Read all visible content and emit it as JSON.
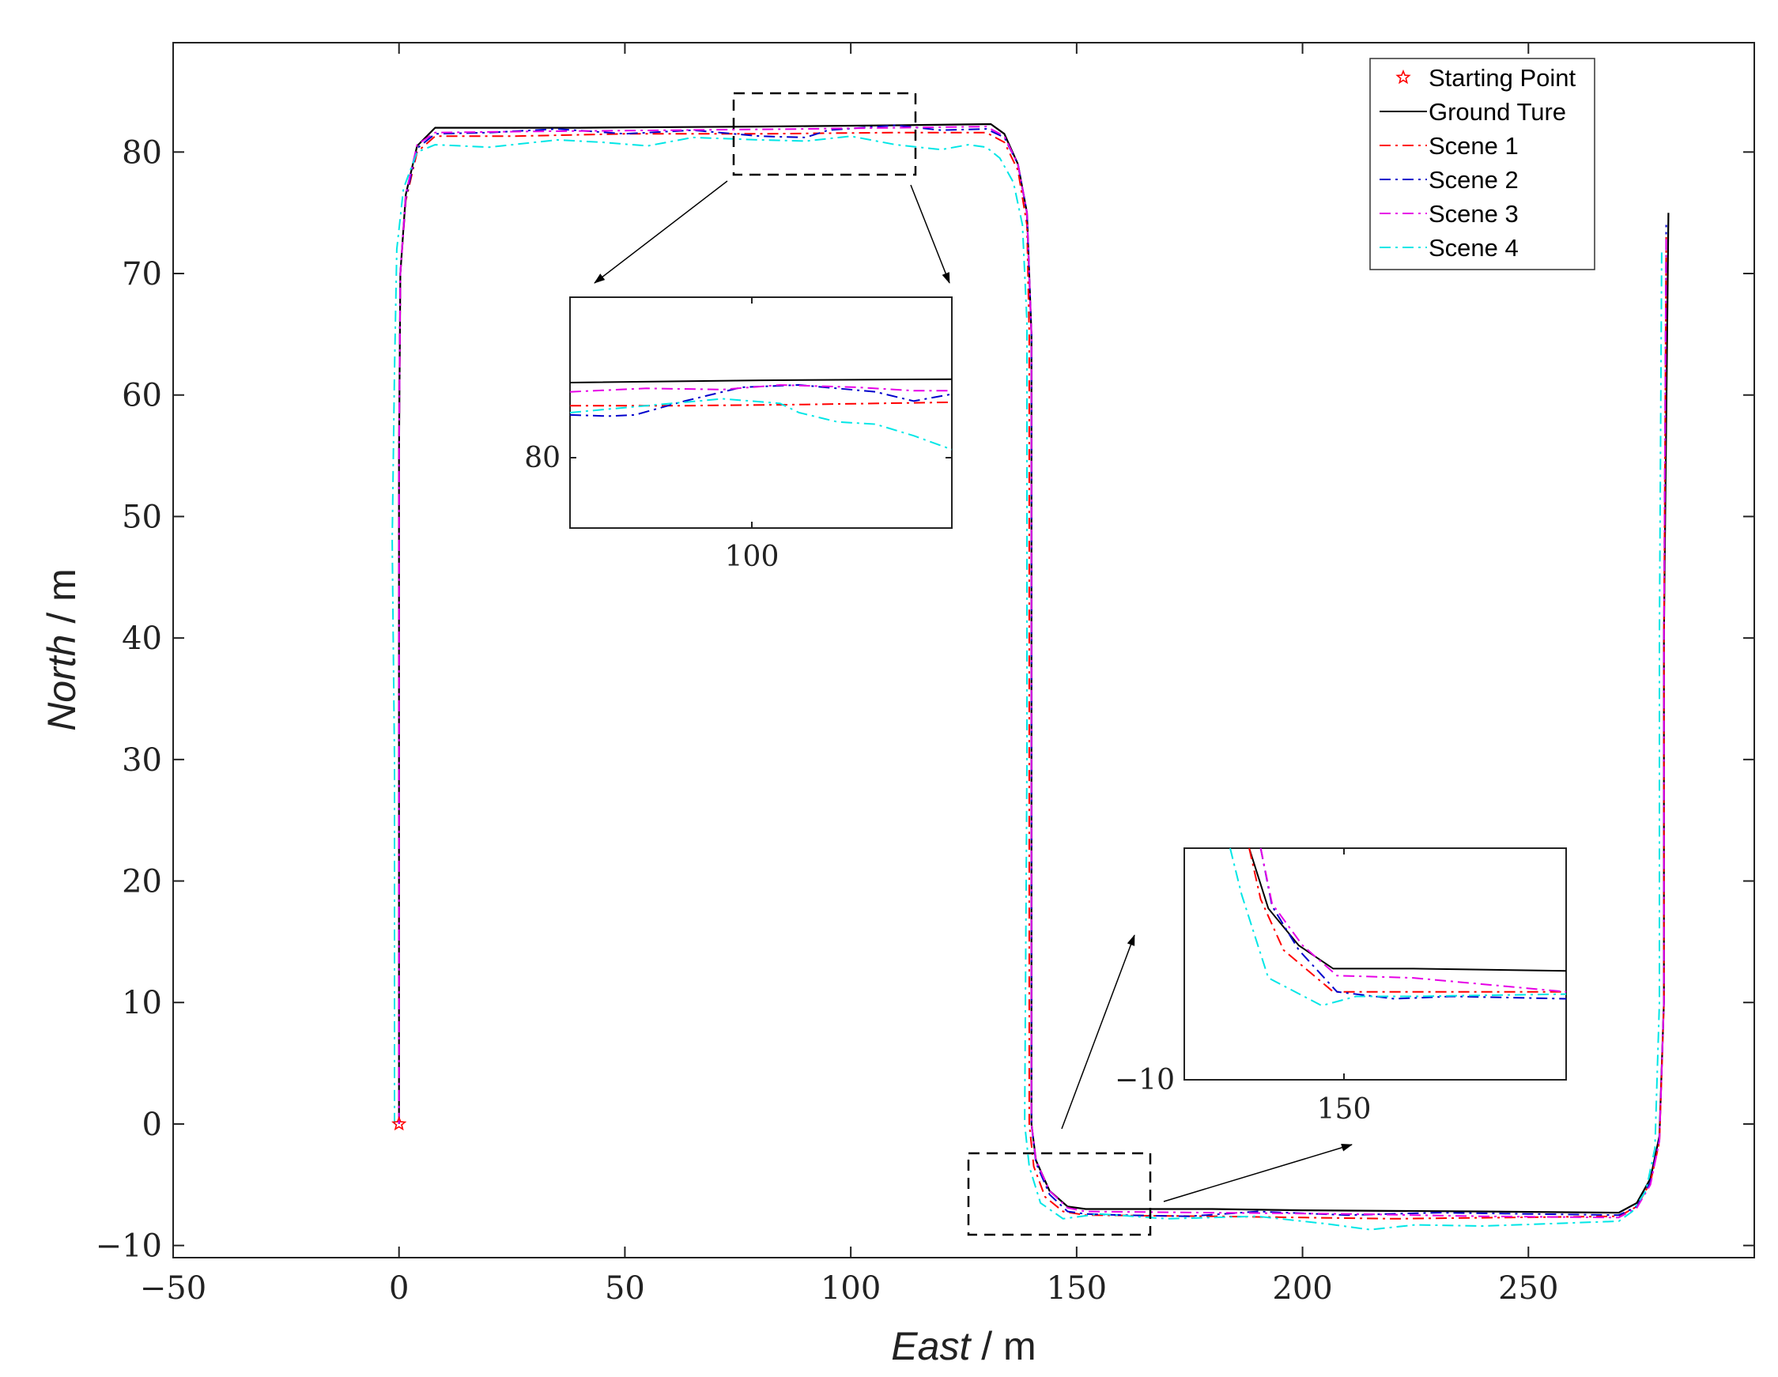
{
  "chart_data": {
    "type": "line",
    "title": "",
    "xlabel": {
      "italic": "East",
      "rest": " / m"
    },
    "ylabel": {
      "italic": "North",
      "rest": " / m"
    },
    "xlim": [
      -50,
      300
    ],
    "ylim": [
      -11,
      89
    ],
    "xticks": [
      -50,
      0,
      50,
      100,
      150,
      200,
      250
    ],
    "yticks": [
      -10,
      0,
      10,
      20,
      30,
      40,
      50,
      60,
      70,
      80
    ],
    "tick_labels": {
      "x": [
        "−50",
        "0",
        "50",
        "100",
        "150",
        "200",
        "250"
      ],
      "y": [
        "−10",
        "0",
        "10",
        "20",
        "30",
        "40",
        "50",
        "60",
        "70",
        "80"
      ]
    },
    "grid": false,
    "legend_position": "top-right",
    "start_point": {
      "name": "Starting Point",
      "x": 0,
      "y": 0,
      "marker": "star",
      "color": "#ff0000"
    },
    "series": [
      {
        "name": "Ground Ture",
        "color": "#000000",
        "dash": "solid",
        "points": [
          [
            0,
            0
          ],
          [
            0,
            30
          ],
          [
            0,
            55
          ],
          [
            0.3,
            70
          ],
          [
            1.5,
            76.5
          ],
          [
            4,
            80.5
          ],
          [
            8,
            82
          ],
          [
            40,
            82
          ],
          [
            80,
            82.1
          ],
          [
            110,
            82.2
          ],
          [
            131,
            82.3
          ],
          [
            134,
            81.5
          ],
          [
            137,
            79
          ],
          [
            139,
            75
          ],
          [
            140,
            65
          ],
          [
            140,
            30
          ],
          [
            140,
            0
          ],
          [
            141,
            -3
          ],
          [
            144,
            -5.5
          ],
          [
            148,
            -6.8
          ],
          [
            152,
            -7
          ],
          [
            180,
            -7
          ],
          [
            200,
            -7.1
          ],
          [
            240,
            -7.2
          ],
          [
            270,
            -7.3
          ],
          [
            274,
            -6.5
          ],
          [
            277,
            -4.5
          ],
          [
            279,
            -1
          ],
          [
            280,
            10
          ],
          [
            280,
            40
          ],
          [
            281,
            75
          ]
        ]
      },
      {
        "name": "Scene 1",
        "color": "#ff0000",
        "dash": "dashdot",
        "points": [
          [
            0,
            0
          ],
          [
            0,
            30
          ],
          [
            0,
            55
          ],
          [
            0.3,
            70
          ],
          [
            1.5,
            76
          ],
          [
            4,
            80
          ],
          [
            8,
            81.3
          ],
          [
            25,
            81.3
          ],
          [
            50,
            81.5
          ],
          [
            80,
            81.5
          ],
          [
            110,
            81.6
          ],
          [
            130,
            81.6
          ],
          [
            134,
            80.8
          ],
          [
            137,
            78.5
          ],
          [
            139,
            74
          ],
          [
            139.5,
            65
          ],
          [
            139.5,
            30
          ],
          [
            139.5,
            0
          ],
          [
            140.5,
            -3.5
          ],
          [
            143,
            -6
          ],
          [
            147,
            -7.2
          ],
          [
            152,
            -7.5
          ],
          [
            180,
            -7.6
          ],
          [
            220,
            -7.8
          ],
          [
            270,
            -7.6
          ],
          [
            274,
            -6.8
          ],
          [
            277,
            -4.8
          ],
          [
            279,
            -1.5
          ],
          [
            280,
            10
          ],
          [
            280,
            40
          ],
          [
            280.5,
            73
          ]
        ]
      },
      {
        "name": "Scene 2",
        "color": "#0000cc",
        "dash": "dashdot",
        "points": [
          [
            0,
            0
          ],
          [
            0,
            30
          ],
          [
            0,
            55
          ],
          [
            0.3,
            70
          ],
          [
            1.5,
            76.2
          ],
          [
            4,
            80.3
          ],
          [
            8,
            81.5
          ],
          [
            20,
            81.6
          ],
          [
            35,
            81.9
          ],
          [
            50,
            81.5
          ],
          [
            65,
            81.8
          ],
          [
            80,
            81.3
          ],
          [
            90,
            81.2
          ],
          [
            95,
            81.8
          ],
          [
            110,
            82.2
          ],
          [
            120,
            81.8
          ],
          [
            130,
            81.9
          ],
          [
            134,
            81.2
          ],
          [
            137,
            79
          ],
          [
            139,
            75
          ],
          [
            140,
            65
          ],
          [
            140,
            30
          ],
          [
            140,
            0
          ],
          [
            141,
            -3.2
          ],
          [
            144,
            -5.8
          ],
          [
            148,
            -7.2
          ],
          [
            152,
            -7.4
          ],
          [
            160,
            -7.5
          ],
          [
            175,
            -7.6
          ],
          [
            190,
            -7.2
          ],
          [
            210,
            -7.5
          ],
          [
            230,
            -7.3
          ],
          [
            250,
            -7.4
          ],
          [
            270,
            -7.5
          ],
          [
            274,
            -6.8
          ],
          [
            277,
            -4.8
          ],
          [
            279,
            -1.2
          ],
          [
            280,
            10
          ],
          [
            280,
            40
          ],
          [
            280.5,
            74
          ]
        ]
      },
      {
        "name": "Scene 3",
        "color": "#e600e6",
        "dash": "dashdot",
        "points": [
          [
            0,
            0
          ],
          [
            0,
            30
          ],
          [
            0,
            55
          ],
          [
            0.3,
            70
          ],
          [
            1.5,
            76.5
          ],
          [
            4,
            80.6
          ],
          [
            8,
            81.6
          ],
          [
            30,
            81.7
          ],
          [
            60,
            81.8
          ],
          [
            90,
            81.9
          ],
          [
            110,
            82
          ],
          [
            130,
            82.1
          ],
          [
            134,
            81.3
          ],
          [
            137,
            79
          ],
          [
            139,
            75
          ],
          [
            140,
            65
          ],
          [
            140,
            30
          ],
          [
            140,
            0
          ],
          [
            141,
            -3
          ],
          [
            144,
            -5.5
          ],
          [
            148,
            -6.9
          ],
          [
            152,
            -7.2
          ],
          [
            180,
            -7.3
          ],
          [
            210,
            -7.4
          ],
          [
            240,
            -7.6
          ],
          [
            270,
            -7.7
          ],
          [
            274,
            -6.9
          ],
          [
            277,
            -5
          ],
          [
            279,
            -1.4
          ],
          [
            280,
            10
          ],
          [
            280,
            40
          ],
          [
            280.5,
            73
          ]
        ]
      },
      {
        "name": "Scene 4",
        "color": "#00e6e6",
        "dash": "dashdot",
        "points": [
          [
            -1,
            0
          ],
          [
            -1,
            30
          ],
          [
            -1.5,
            48
          ],
          [
            -1,
            62
          ],
          [
            -0.5,
            72
          ],
          [
            1,
            77
          ],
          [
            4,
            80
          ],
          [
            8,
            80.6
          ],
          [
            20,
            80.4
          ],
          [
            35,
            81
          ],
          [
            45,
            80.8
          ],
          [
            55,
            80.5
          ],
          [
            65,
            81.2
          ],
          [
            80,
            81
          ],
          [
            90,
            80.9
          ],
          [
            100,
            81.3
          ],
          [
            110,
            80.6
          ],
          [
            120,
            80.2
          ],
          [
            126,
            80.6
          ],
          [
            130,
            80.4
          ],
          [
            133,
            79.5
          ],
          [
            136,
            77.5
          ],
          [
            138,
            74
          ],
          [
            139,
            66
          ],
          [
            139,
            30
          ],
          [
            138.5,
            0
          ],
          [
            139.5,
            -3.5
          ],
          [
            142,
            -6.5
          ],
          [
            147,
            -7.8
          ],
          [
            155,
            -7.4
          ],
          [
            170,
            -7.8
          ],
          [
            190,
            -7.6
          ],
          [
            205,
            -8.2
          ],
          [
            215,
            -8.7
          ],
          [
            225,
            -8.3
          ],
          [
            240,
            -8.4
          ],
          [
            255,
            -8.2
          ],
          [
            270,
            -8
          ],
          [
            273,
            -7.2
          ],
          [
            276,
            -5.5
          ],
          [
            278,
            -2
          ],
          [
            279,
            10
          ],
          [
            279,
            40
          ],
          [
            279.5,
            72
          ]
        ]
      }
    ],
    "insets": [
      {
        "name": "top-zoom",
        "xlim": [
          80,
          122
        ],
        "ylim": [
          78,
          88
        ],
        "xtick_labels": [
          "100"
        ],
        "ytick_labels": [
          "80"
        ]
      },
      {
        "name": "bottom-zoom",
        "xlim": [
          145,
          165
        ],
        "ylim": [
          -10,
          5
        ],
        "xtick_labels": [
          "150"
        ],
        "ytick_labels": [
          "−10"
        ]
      }
    ]
  }
}
